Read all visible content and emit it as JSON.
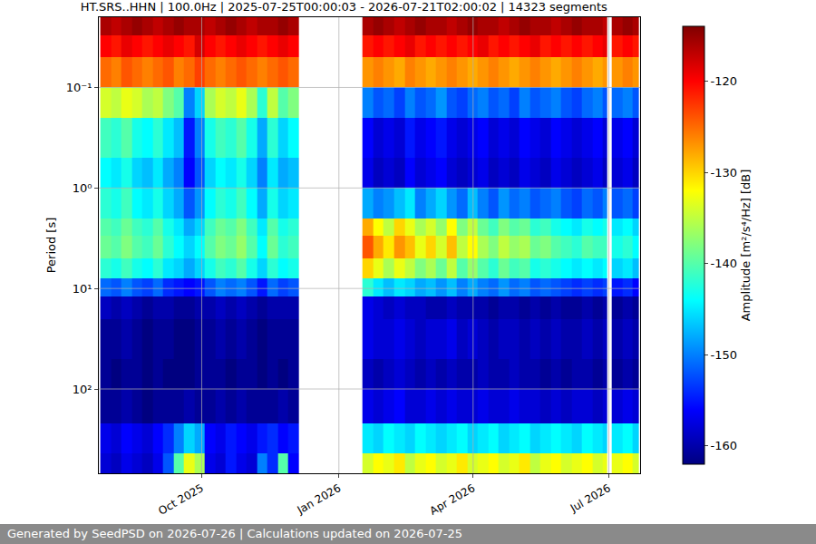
{
  "chart_data": {
    "type": "heatmap",
    "title": "HT.SRS..HHN | 100.0Hz | 2025-07-25T00:00:03 - 2026-07-21T02:00:02 | 14323 segments",
    "ylabel": "Period [s]",
    "footer": "Generated by SeedPSD on 2026-07-26 | Calculations updated on 2026-07-25",
    "log": "y",
    "grid": true,
    "xlim": [
      "2025-07-24",
      "2026-07-22"
    ],
    "ylim": [
      0.02,
      690
    ],
    "xticks": [
      {
        "value": "2025-10-01",
        "label": "Oct 2025"
      },
      {
        "value": "2026-01-01",
        "label": "Jan 2026"
      },
      {
        "value": "2026-04-01",
        "label": "Apr 2026"
      },
      {
        "value": "2026-07-01",
        "label": "Jul 2026"
      }
    ],
    "yticks": [
      {
        "value": 0.1,
        "label": "10⁻¹"
      },
      {
        "value": 1,
        "label": "10⁰"
      },
      {
        "value": 10,
        "label": "10¹"
      },
      {
        "value": 100,
        "label": "10²"
      }
    ],
    "colorbar": {
      "label": "Amplitude [m²/s⁴/Hz] [dB]",
      "range": [
        -162,
        -114
      ],
      "ticks": [
        -160,
        -150,
        -140,
        -130,
        -120
      ]
    },
    "x": [
      "2025-07-25",
      "2025-08-01",
      "2025-08-08",
      "2025-08-15",
      "2025-08-22",
      "2025-08-29",
      "2025-09-05",
      "2025-09-12",
      "2025-09-19",
      "2025-09-26",
      "2025-10-03",
      "2025-10-10",
      "2025-10-17",
      "2025-10-24",
      "2025-10-31",
      "2025-11-07",
      "2025-11-14",
      "2025-11-21",
      "2025-11-28",
      "2025-12-05",
      "2026-01-17",
      "2026-01-24",
      "2026-01-31",
      "2026-02-07",
      "2026-02-14",
      "2026-02-21",
      "2026-02-28",
      "2026-03-07",
      "2026-03-14",
      "2026-03-21",
      "2026-03-28",
      "2026-04-04",
      "2026-04-11",
      "2026-04-18",
      "2026-04-25",
      "2026-05-02",
      "2026-05-09",
      "2026-05-16",
      "2026-05-23",
      "2026-05-30",
      "2026-06-06",
      "2026-06-13",
      "2026-06-20",
      "2026-06-27",
      "2026-06-30",
      "2026-07-03",
      "2026-07-10",
      "2026-07-17",
      "2026-07-21"
    ],
    "y": [
      0.02,
      0.03,
      0.05,
      0.1,
      0.2,
      0.5,
      1,
      2,
      3,
      5,
      8,
      12,
      20,
      50,
      100,
      220,
      440,
      690
    ],
    "cells": [
      [
        -116,
        -117,
        -116,
        -115,
        -116,
        -117,
        -116,
        -115,
        -116,
        -116,
        -117,
        -116,
        -115,
        -116,
        -117,
        -116,
        -116,
        -115,
        -116,
        null,
        -116,
        -115,
        -116,
        -117,
        -116,
        -115,
        -116,
        -116,
        -117,
        -116,
        -115,
        -116,
        -116,
        -117,
        -116,
        -115,
        -116,
        -116,
        -117,
        -116,
        -115,
        -116,
        -116,
        -117,
        null,
        -116,
        -115,
        -116
      ],
      [
        -120,
        -121,
        -119,
        -120,
        -121,
        -120,
        -119,
        -120,
        -121,
        -118,
        -120,
        -121,
        -120,
        -119,
        -120,
        -121,
        -120,
        -119,
        -120,
        null,
        -121,
        -120,
        -121,
        -120,
        -119,
        -121,
        -120,
        -121,
        -120,
        -121,
        -120,
        -119,
        -121,
        -120,
        -121,
        -120,
        -119,
        -121,
        -120,
        -121,
        -120,
        -121,
        -120,
        -119,
        null,
        -121,
        -120,
        -121
      ],
      [
        -125,
        -126,
        -124,
        -125,
        -126,
        -125,
        -124,
        -126,
        -125,
        -123,
        -125,
        -126,
        -125,
        -124,
        -125,
        -126,
        -125,
        -124,
        -125,
        null,
        -127,
        -126,
        -127,
        -128,
        -126,
        -127,
        -128,
        -127,
        -126,
        -127,
        -128,
        -127,
        -126,
        -127,
        -128,
        -127,
        -126,
        -127,
        -128,
        -127,
        -126,
        -127,
        -128,
        -127,
        null,
        -127,
        -126,
        -127
      ],
      [
        -134,
        -135,
        -133,
        -134,
        -136,
        -135,
        -138,
        -140,
        -150,
        -146,
        -136,
        -134,
        -135,
        -133,
        -136,
        -142,
        -135,
        -140,
        -138,
        null,
        -150,
        -152,
        -151,
        -153,
        -150,
        -152,
        -151,
        -149,
        -152,
        -153,
        -151,
        -150,
        -152,
        -151,
        -153,
        -150,
        -152,
        -151,
        -150,
        -152,
        -153,
        -151,
        -150,
        -152,
        null,
        -151,
        -150,
        -152
      ],
      [
        -141,
        -142,
        -140,
        -143,
        -144,
        -142,
        -145,
        -147,
        -155,
        -150,
        -143,
        -141,
        -142,
        -140,
        -143,
        -148,
        -142,
        -146,
        -144,
        null,
        -156,
        -158,
        -157,
        -158,
        -155,
        -157,
        -156,
        -155,
        -157,
        -158,
        -157,
        -156,
        -158,
        -157,
        -158,
        -156,
        -157,
        -158,
        -156,
        -157,
        -158,
        -157,
        -156,
        -158,
        null,
        -157,
        -156,
        -158
      ],
      [
        -144,
        -145,
        -143,
        -146,
        -147,
        -145,
        -148,
        -150,
        -156,
        -152,
        -146,
        -144,
        -145,
        -143,
        -146,
        -150,
        -145,
        -148,
        -147,
        null,
        -157,
        -159,
        -158,
        -159,
        -156,
        -158,
        -157,
        -156,
        -158,
        -159,
        -158,
        -157,
        -159,
        -158,
        -159,
        -157,
        -158,
        -159,
        -157,
        -158,
        -159,
        -158,
        -157,
        -159,
        null,
        -158,
        -157,
        -159
      ],
      [
        -142,
        -143,
        -141,
        -144,
        -145,
        -143,
        -146,
        -148,
        -152,
        -149,
        -144,
        -142,
        -143,
        -141,
        -144,
        -148,
        -143,
        -146,
        -145,
        null,
        -148,
        -150,
        -149,
        -147,
        -145,
        -150,
        -148,
        -146,
        -149,
        -151,
        -147,
        -150,
        -152,
        -149,
        -151,
        -150,
        -152,
        -151,
        -150,
        -152,
        -153,
        -151,
        -152,
        -150,
        null,
        -152,
        -151,
        -153
      ],
      [
        -140,
        -141,
        -139,
        -141,
        -142,
        -140,
        -143,
        -145,
        -148,
        -146,
        -141,
        -139,
        -140,
        -138,
        -141,
        -145,
        -140,
        -143,
        -142,
        null,
        -128,
        -132,
        -135,
        -130,
        -133,
        -136,
        -134,
        -137,
        -132,
        -138,
        -135,
        -139,
        -141,
        -138,
        -140,
        -139,
        -142,
        -141,
        -143,
        -144,
        -145,
        -143,
        -144,
        -143,
        null,
        -145,
        -144,
        -146
      ],
      [
        -139,
        -140,
        -138,
        -140,
        -141,
        -139,
        -142,
        -144,
        -146,
        -144,
        -140,
        -138,
        -139,
        -137,
        -140,
        -144,
        -139,
        -142,
        -141,
        null,
        -124,
        -128,
        -131,
        -127,
        -129,
        -133,
        -130,
        -134,
        -129,
        -135,
        -132,
        -136,
        -138,
        -135,
        -137,
        -136,
        -139,
        -138,
        -140,
        -141,
        -142,
        -140,
        -141,
        -141,
        null,
        -143,
        -142,
        -144
      ],
      [
        -142,
        -143,
        -141,
        -143,
        -144,
        -142,
        -145,
        -146,
        -148,
        -146,
        -143,
        -141,
        -142,
        -140,
        -143,
        -146,
        -142,
        -144,
        -143,
        null,
        -130,
        -133,
        -136,
        -133,
        -135,
        -138,
        -136,
        -139,
        -135,
        -140,
        -137,
        -140,
        -142,
        -139,
        -141,
        -140,
        -143,
        -142,
        -143,
        -144,
        -145,
        -144,
        -145,
        -144,
        null,
        -146,
        -145,
        -147
      ],
      [
        -151,
        -152,
        -150,
        -152,
        -153,
        -151,
        -154,
        -155,
        -156,
        -155,
        -152,
        -150,
        -151,
        -150,
        -152,
        -155,
        -151,
        -153,
        -152,
        null,
        -142,
        -145,
        -147,
        -145,
        -146,
        -148,
        -147,
        -149,
        -147,
        -150,
        -148,
        -150,
        -151,
        -149,
        -151,
        -150,
        -152,
        -151,
        -152,
        -153,
        -154,
        -153,
        -154,
        -153,
        null,
        -155,
        -154,
        -156
      ],
      [
        -159,
        -160,
        -159,
        -160,
        -161,
        -160,
        -160,
        -161,
        -161,
        -160,
        -160,
        -159,
        -160,
        -159,
        -160,
        -161,
        -160,
        -160,
        -160,
        null,
        -157,
        -158,
        -159,
        -158,
        -159,
        -159,
        -160,
        -160,
        -159,
        -160,
        -160,
        -160,
        -161,
        -160,
        -160,
        -161,
        -160,
        -161,
        -160,
        -161,
        -161,
        -160,
        -161,
        -160,
        null,
        -161,
        -160,
        -161
      ],
      [
        -161,
        -161,
        -160,
        -161,
        -162,
        -161,
        -161,
        -162,
        -162,
        -161,
        -161,
        -160,
        -161,
        -160,
        -161,
        -162,
        -161,
        -161,
        -161,
        null,
        -157,
        -158,
        -158,
        -157,
        -158,
        -159,
        -158,
        -158,
        -157,
        -159,
        -158,
        -159,
        -160,
        -159,
        -159,
        -160,
        -159,
        -160,
        -159,
        -160,
        -160,
        -159,
        -160,
        -159,
        null,
        -160,
        -159,
        -160
      ],
      [
        -161,
        -162,
        -161,
        -161,
        -162,
        -161,
        -162,
        -162,
        -162,
        -161,
        -161,
        -161,
        -162,
        -161,
        -161,
        -162,
        -161,
        -162,
        -161,
        null,
        -159,
        -160,
        -159,
        -158,
        -159,
        -160,
        -159,
        -160,
        -159,
        -160,
        -160,
        -159,
        -160,
        -160,
        -159,
        -160,
        -160,
        -161,
        -160,
        -161,
        -160,
        -160,
        -161,
        -160,
        null,
        -161,
        -160,
        -161
      ],
      [
        -161,
        -161,
        -160,
        -161,
        -162,
        -161,
        -161,
        -161,
        -160,
        -161,
        -161,
        -160,
        -161,
        -160,
        -161,
        -161,
        -161,
        -160,
        -161,
        null,
        -157,
        -158,
        -157,
        -156,
        -158,
        -158,
        -157,
        -158,
        -157,
        -158,
        -158,
        -157,
        -158,
        -158,
        -157,
        -158,
        -158,
        -159,
        -158,
        -159,
        -158,
        -158,
        -159,
        -158,
        null,
        -158,
        -157,
        -158
      ],
      [
        -157,
        -158,
        -156,
        -157,
        -158,
        -156,
        -154,
        -150,
        -146,
        -148,
        -156,
        -157,
        -155,
        -156,
        -157,
        -155,
        -154,
        -156,
        -155,
        null,
        -145,
        -146,
        -144,
        -145,
        -146,
        -144,
        -145,
        -146,
        -145,
        -144,
        -146,
        -145,
        -144,
        -146,
        -145,
        -144,
        -146,
        -145,
        -144,
        -145,
        -146,
        -144,
        -145,
        -146,
        null,
        -145,
        -144,
        -146
      ],
      [
        -158,
        -159,
        -157,
        -158,
        -159,
        -157,
        -152,
        -140,
        -133,
        -136,
        -157,
        -158,
        -155,
        -157,
        -158,
        -150,
        -154,
        -140,
        -156,
        null,
        -134,
        -132,
        -133,
        -131,
        -135,
        -133,
        -132,
        -134,
        -133,
        -131,
        -134,
        -133,
        -132,
        -134,
        -133,
        -131,
        -135,
        -133,
        -132,
        -134,
        -133,
        -132,
        -134,
        -133,
        null,
        -133,
        -132,
        -134
      ]
    ]
  }
}
